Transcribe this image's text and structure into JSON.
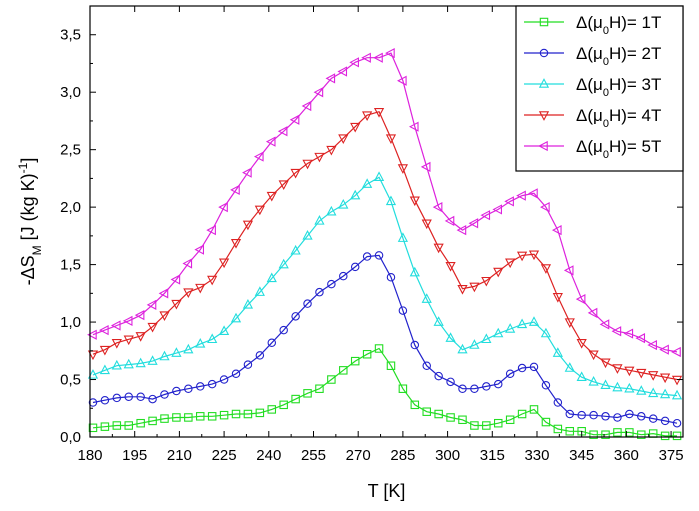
{
  "chart_data": {
    "type": "line",
    "xlabel": "T [K]",
    "ylabel": "-ΔS_M [J (kg K)^-1]",
    "xlim": [
      180,
      379
    ],
    "ylim": [
      0,
      3.75
    ],
    "xticks": [
      180,
      195,
      210,
      225,
      240,
      255,
      270,
      285,
      300,
      315,
      330,
      345,
      360,
      375
    ],
    "yticks": [
      0.0,
      0.5,
      1.0,
      1.5,
      2.0,
      2.5,
      3.0,
      3.5
    ],
    "ytick_labels": [
      "0,0",
      "0,5",
      "1,0",
      "1,5",
      "2,0",
      "2,5",
      "3,0",
      "3,5"
    ],
    "grid": false,
    "legend_position": "top-right",
    "x": [
      181,
      185,
      189,
      193,
      197,
      201,
      205,
      209,
      213,
      217,
      221,
      225,
      229,
      233,
      237,
      241,
      245,
      249,
      253,
      257,
      261,
      265,
      269,
      273,
      277,
      281,
      285,
      289,
      293,
      297,
      301,
      305,
      309,
      313,
      317,
      321,
      325,
      329,
      333,
      337,
      341,
      345,
      349,
      353,
      357,
      361,
      365,
      369,
      373,
      377
    ],
    "series": [
      {
        "name": "Δ(μ0H)= 1T",
        "color": "#22dd22",
        "marker": "square",
        "values": [
          0.08,
          0.09,
          0.1,
          0.1,
          0.12,
          0.14,
          0.16,
          0.17,
          0.17,
          0.18,
          0.18,
          0.19,
          0.2,
          0.2,
          0.21,
          0.24,
          0.28,
          0.33,
          0.38,
          0.42,
          0.5,
          0.58,
          0.66,
          0.72,
          0.77,
          0.62,
          0.42,
          0.28,
          0.22,
          0.2,
          0.17,
          0.15,
          0.1,
          0.1,
          0.12,
          0.15,
          0.2,
          0.24,
          0.13,
          0.07,
          0.05,
          0.05,
          0.02,
          0.02,
          0.04,
          0.04,
          0.02,
          0.03,
          0.01,
          0.01
        ]
      },
      {
        "name": "Δ(μ0H)= 2T",
        "color": "#2222cc",
        "marker": "circle",
        "values": [
          0.3,
          0.32,
          0.34,
          0.35,
          0.35,
          0.33,
          0.37,
          0.4,
          0.42,
          0.44,
          0.46,
          0.5,
          0.55,
          0.63,
          0.71,
          0.82,
          0.93,
          1.05,
          1.16,
          1.26,
          1.33,
          1.4,
          1.48,
          1.57,
          1.58,
          1.39,
          1.1,
          0.8,
          0.62,
          0.53,
          0.48,
          0.42,
          0.42,
          0.44,
          0.46,
          0.55,
          0.6,
          0.61,
          0.45,
          0.3,
          0.2,
          0.19,
          0.19,
          0.18,
          0.17,
          0.2,
          0.18,
          0.16,
          0.14,
          0.12
        ]
      },
      {
        "name": "Δ(μ0H)= 3T",
        "color": "#22dddd",
        "marker": "triangle-up",
        "values": [
          0.54,
          0.58,
          0.62,
          0.63,
          0.64,
          0.66,
          0.7,
          0.73,
          0.76,
          0.81,
          0.85,
          0.92,
          1.03,
          1.15,
          1.26,
          1.38,
          1.5,
          1.62,
          1.75,
          1.88,
          1.96,
          2.02,
          2.1,
          2.2,
          2.26,
          2.05,
          1.73,
          1.43,
          1.2,
          1.0,
          0.86,
          0.76,
          0.8,
          0.85,
          0.9,
          0.94,
          0.98,
          1.0,
          0.9,
          0.73,
          0.6,
          0.52,
          0.48,
          0.45,
          0.43,
          0.42,
          0.4,
          0.38,
          0.37,
          0.36
        ]
      },
      {
        "name": "Δ(μ0H)= 4T",
        "color": "#dd2222",
        "marker": "triangle-down",
        "values": [
          0.72,
          0.76,
          0.82,
          0.85,
          0.88,
          0.96,
          1.06,
          1.16,
          1.26,
          1.3,
          1.37,
          1.52,
          1.69,
          1.85,
          1.98,
          2.1,
          2.2,
          2.3,
          2.38,
          2.44,
          2.5,
          2.6,
          2.7,
          2.8,
          2.83,
          2.6,
          2.34,
          2.06,
          1.86,
          1.65,
          1.49,
          1.29,
          1.31,
          1.36,
          1.44,
          1.52,
          1.58,
          1.59,
          1.47,
          1.22,
          1.0,
          0.82,
          0.72,
          0.65,
          0.6,
          0.58,
          0.56,
          0.54,
          0.52,
          0.5
        ]
      },
      {
        "name": "Δ(μ0H)= 5T",
        "color": "#dd22dd",
        "marker": "triangle-left",
        "values": [
          0.89,
          0.93,
          0.97,
          1.01,
          1.06,
          1.15,
          1.25,
          1.37,
          1.51,
          1.63,
          1.8,
          2.0,
          2.15,
          2.3,
          2.44,
          2.57,
          2.66,
          2.76,
          2.88,
          3.0,
          3.12,
          3.18,
          3.26,
          3.3,
          3.3,
          3.34,
          3.1,
          2.7,
          2.35,
          2.0,
          1.88,
          1.8,
          1.86,
          1.93,
          1.98,
          2.05,
          2.1,
          2.12,
          2.0,
          1.8,
          1.45,
          1.2,
          1.08,
          0.98,
          0.92,
          0.9,
          0.86,
          0.8,
          0.76,
          0.74
        ]
      }
    ]
  }
}
